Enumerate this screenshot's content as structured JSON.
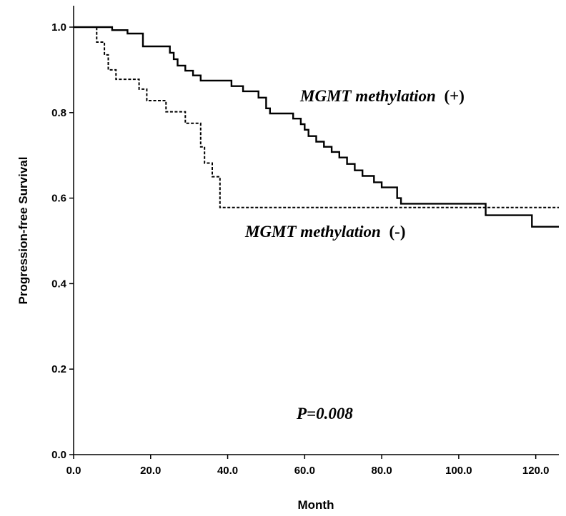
{
  "chart_data": {
    "type": "line",
    "xlabel": "Month",
    "ylabel": "Progression-free Survival",
    "xlim": [
      0,
      126
    ],
    "ylim": [
      0,
      1.05
    ],
    "x_ticks": [
      "0.0",
      "20.0",
      "40.0",
      "60.0",
      "80.0",
      "100.0",
      "120.0"
    ],
    "y_ticks": [
      "0.0",
      "0.2",
      "0.4",
      "0.6",
      "0.8",
      "1.0"
    ],
    "grid": false,
    "legend": "none",
    "series": [
      {
        "label_text": "MGMT methylation",
        "label_sign": "(+)",
        "color": "#000000",
        "style": "solid",
        "points": [
          [
            0,
            1.0
          ],
          [
            10,
            1.0
          ],
          [
            10,
            0.993
          ],
          [
            14,
            0.993
          ],
          [
            14,
            0.985
          ],
          [
            18,
            0.985
          ],
          [
            18,
            0.955
          ],
          [
            25,
            0.955
          ],
          [
            25,
            0.94
          ],
          [
            26,
            0.94
          ],
          [
            26,
            0.925
          ],
          [
            27,
            0.925
          ],
          [
            27,
            0.91
          ],
          [
            29,
            0.91
          ],
          [
            29,
            0.898
          ],
          [
            31,
            0.898
          ],
          [
            31,
            0.887
          ],
          [
            33,
            0.887
          ],
          [
            33,
            0.875
          ],
          [
            41,
            0.875
          ],
          [
            41,
            0.862
          ],
          [
            44,
            0.862
          ],
          [
            44,
            0.85
          ],
          [
            48,
            0.85
          ],
          [
            48,
            0.835
          ],
          [
            50,
            0.835
          ],
          [
            50,
            0.81
          ],
          [
            51,
            0.81
          ],
          [
            51,
            0.798
          ],
          [
            57,
            0.798
          ],
          [
            57,
            0.786
          ],
          [
            59,
            0.786
          ],
          [
            59,
            0.773
          ],
          [
            60,
            0.773
          ],
          [
            60,
            0.76
          ],
          [
            61,
            0.76
          ],
          [
            61,
            0.745
          ],
          [
            63,
            0.745
          ],
          [
            63,
            0.732
          ],
          [
            65,
            0.732
          ],
          [
            65,
            0.72
          ],
          [
            67,
            0.72
          ],
          [
            67,
            0.708
          ],
          [
            69,
            0.708
          ],
          [
            69,
            0.695
          ],
          [
            71,
            0.695
          ],
          [
            71,
            0.68
          ],
          [
            73,
            0.68
          ],
          [
            73,
            0.665
          ],
          [
            75,
            0.665
          ],
          [
            75,
            0.652
          ],
          [
            78,
            0.652
          ],
          [
            78,
            0.637
          ],
          [
            80,
            0.637
          ],
          [
            80,
            0.625
          ],
          [
            84,
            0.625
          ],
          [
            84,
            0.6
          ],
          [
            85,
            0.6
          ],
          [
            85,
            0.587
          ],
          [
            107,
            0.587
          ],
          [
            107,
            0.56
          ],
          [
            119,
            0.56
          ],
          [
            119,
            0.533
          ],
          [
            126,
            0.533
          ]
        ]
      },
      {
        "label_text": "MGMT methylation",
        "label_sign": "(-)",
        "color": "#000000",
        "style": "dashed",
        "points": [
          [
            0,
            1.0
          ],
          [
            6,
            1.0
          ],
          [
            6,
            0.965
          ],
          [
            8,
            0.965
          ],
          [
            8,
            0.935
          ],
          [
            9,
            0.935
          ],
          [
            9,
            0.9
          ],
          [
            11,
            0.9
          ],
          [
            11,
            0.878
          ],
          [
            17,
            0.878
          ],
          [
            17,
            0.855
          ],
          [
            19,
            0.855
          ],
          [
            19,
            0.828
          ],
          [
            24,
            0.828
          ],
          [
            24,
            0.802
          ],
          [
            29,
            0.802
          ],
          [
            29,
            0.775
          ],
          [
            33,
            0.775
          ],
          [
            33,
            0.72
          ],
          [
            34,
            0.72
          ],
          [
            34,
            0.682
          ],
          [
            36,
            0.682
          ],
          [
            36,
            0.65
          ],
          [
            38,
            0.65
          ],
          [
            38,
            0.578
          ],
          [
            126,
            0.578
          ]
        ]
      }
    ],
    "annotation": "P=0.008"
  }
}
